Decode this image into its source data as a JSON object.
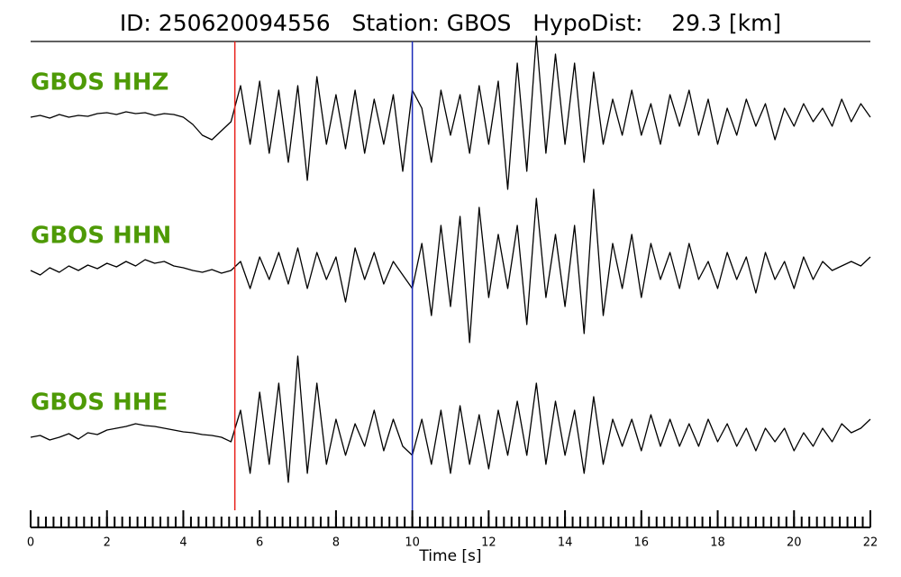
{
  "chart_data": {
    "type": "line",
    "title": "ID: 250620094556   Station: GBOS   HypoDist:    29.3 [km]",
    "xlabel": "Time [s]",
    "xlim": [
      0,
      22
    ],
    "xticks": [
      0,
      2,
      4,
      6,
      8,
      10,
      12,
      14,
      16,
      18,
      20,
      22
    ],
    "xminor_step": 0.2,
    "ylim": [
      -1,
      1
    ],
    "markers": [
      {
        "x": 5.35,
        "color": "#e8201a"
      },
      {
        "x": 10.0,
        "color": "#1a2ab8"
      }
    ],
    "label_color": "#4e9a06",
    "x": [
      0,
      0.25,
      0.5,
      0.75,
      1,
      1.25,
      1.5,
      1.75,
      2,
      2.25,
      2.5,
      2.75,
      3,
      3.25,
      3.5,
      3.75,
      4,
      4.25,
      4.5,
      4.75,
      5,
      5.25,
      5.5,
      5.75,
      6,
      6.25,
      6.5,
      6.75,
      7,
      7.25,
      7.5,
      7.75,
      8,
      8.25,
      8.5,
      8.75,
      9,
      9.25,
      9.5,
      9.75,
      10,
      10.25,
      10.5,
      10.75,
      11,
      11.25,
      11.5,
      11.75,
      12,
      12.25,
      12.5,
      12.75,
      13,
      13.25,
      13.5,
      13.75,
      14,
      14.25,
      14.5,
      14.75,
      15,
      15.25,
      15.5,
      15.75,
      16,
      16.25,
      16.5,
      16.75,
      17,
      17.25,
      17.5,
      17.75,
      18,
      18.25,
      18.5,
      18.75,
      19,
      19.25,
      19.5,
      19.75,
      20,
      20.25,
      20.5,
      20.75,
      21,
      21.25,
      21.5,
      21.75,
      22
    ],
    "series": [
      {
        "name": "GBOS HHZ",
        "color": "#000000",
        "values": [
          0,
          0.02,
          -0.01,
          0.03,
          0,
          0.02,
          0.01,
          0.04,
          0.05,
          0.03,
          0.06,
          0.04,
          0.05,
          0.02,
          0.04,
          0.03,
          0.0,
          -0.08,
          -0.2,
          -0.25,
          -0.15,
          -0.05,
          0.35,
          -0.3,
          0.4,
          -0.4,
          0.3,
          -0.5,
          0.35,
          -0.7,
          0.45,
          -0.3,
          0.25,
          -0.35,
          0.3,
          -0.4,
          0.2,
          -0.3,
          0.25,
          -0.6,
          0.3,
          0.1,
          -0.5,
          0.3,
          -0.2,
          0.25,
          -0.4,
          0.35,
          -0.3,
          0.4,
          -0.8,
          0.6,
          -0.6,
          0.9,
          -0.4,
          0.7,
          -0.3,
          0.6,
          -0.5,
          0.5,
          -0.3,
          0.2,
          -0.2,
          0.3,
          -0.2,
          0.15,
          -0.3,
          0.25,
          -0.1,
          0.3,
          -0.2,
          0.2,
          -0.3,
          0.1,
          -0.2,
          0.2,
          -0.1,
          0.15,
          -0.25,
          0.1,
          -0.1,
          0.15,
          -0.05,
          0.1,
          -0.1,
          0.2,
          -0.05,
          0.15,
          0.0
        ]
      },
      {
        "name": "GBOS HHN",
        "color": "#000000",
        "values": [
          0,
          -0.05,
          0.03,
          -0.02,
          0.05,
          0.0,
          0.06,
          0.02,
          0.08,
          0.04,
          0.1,
          0.05,
          0.12,
          0.08,
          0.1,
          0.05,
          0.03,
          0.0,
          -0.02,
          0.01,
          -0.03,
          0.0,
          0.1,
          -0.2,
          0.15,
          -0.1,
          0.2,
          -0.15,
          0.25,
          -0.2,
          0.2,
          -0.1,
          0.15,
          -0.35,
          0.25,
          -0.1,
          0.2,
          -0.15,
          0.1,
          -0.05,
          -0.2,
          0.3,
          -0.5,
          0.5,
          -0.4,
          0.6,
          -0.8,
          0.7,
          -0.3,
          0.4,
          -0.2,
          0.5,
          -0.6,
          0.8,
          -0.3,
          0.4,
          -0.4,
          0.5,
          -0.7,
          0.9,
          -0.5,
          0.3,
          -0.2,
          0.4,
          -0.3,
          0.3,
          -0.1,
          0.2,
          -0.2,
          0.3,
          -0.1,
          0.1,
          -0.2,
          0.2,
          -0.1,
          0.15,
          -0.25,
          0.2,
          -0.1,
          0.1,
          -0.2,
          0.15,
          -0.1,
          0.1,
          0.0,
          0.05,
          0.1,
          0.05,
          0.15
        ]
      },
      {
        "name": "GBOS HHE",
        "color": "#000000",
        "values": [
          0,
          0.02,
          -0.03,
          0.0,
          0.04,
          -0.02,
          0.05,
          0.03,
          0.08,
          0.1,
          0.12,
          0.15,
          0.13,
          0.12,
          0.1,
          0.08,
          0.06,
          0.05,
          0.03,
          0.02,
          0.0,
          -0.05,
          0.3,
          -0.4,
          0.5,
          -0.3,
          0.6,
          -0.5,
          0.9,
          -0.4,
          0.6,
          -0.3,
          0.2,
          -0.2,
          0.15,
          -0.1,
          0.3,
          -0.15,
          0.2,
          -0.1,
          -0.2,
          0.2,
          -0.3,
          0.3,
          -0.4,
          0.35,
          -0.3,
          0.25,
          -0.35,
          0.3,
          -0.2,
          0.4,
          -0.2,
          0.6,
          -0.3,
          0.4,
          -0.2,
          0.3,
          -0.4,
          0.45,
          -0.3,
          0.2,
          -0.1,
          0.2,
          -0.15,
          0.25,
          -0.1,
          0.2,
          -0.1,
          0.15,
          -0.1,
          0.2,
          -0.05,
          0.15,
          -0.1,
          0.1,
          -0.15,
          0.1,
          -0.05,
          0.1,
          -0.15,
          0.05,
          -0.1,
          0.1,
          -0.05,
          0.15,
          0.05,
          0.1,
          0.2
        ]
      }
    ]
  }
}
